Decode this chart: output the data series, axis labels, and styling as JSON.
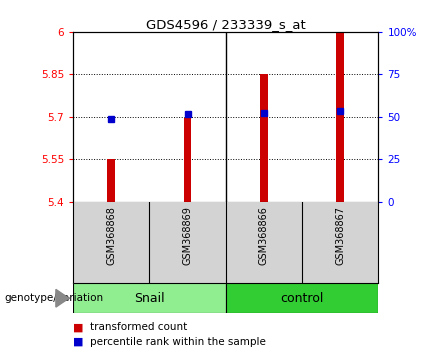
{
  "title": "GDS4596 / 233339_s_at",
  "samples": [
    "GSM368868",
    "GSM368869",
    "GSM368866",
    "GSM368867"
  ],
  "groups": [
    "Snail",
    "Snail",
    "control",
    "control"
  ],
  "group_labels": [
    "Snail",
    "control"
  ],
  "group_colors_snail": "#90EE90",
  "group_colors_ctrl": "#32CD32",
  "transformed_counts": [
    5.552,
    5.695,
    5.852,
    6.0
  ],
  "percentile_ranks": [
    49.0,
    51.5,
    52.5,
    53.5
  ],
  "ylim_left": [
    5.4,
    6.0
  ],
  "ylim_right": [
    0,
    100
  ],
  "yticks_left": [
    5.4,
    5.55,
    5.7,
    5.85,
    6.0
  ],
  "ytick_labels_left": [
    "5.4",
    "5.55",
    "5.7",
    "5.85",
    "6"
  ],
  "yticks_right": [
    0,
    25,
    50,
    75,
    100
  ],
  "ytick_labels_right": [
    "0",
    "25",
    "50",
    "75",
    "100%"
  ],
  "hlines": [
    5.55,
    5.7,
    5.85
  ],
  "bar_color": "#CC0000",
  "dot_color": "#0000CC",
  "bar_width": 0.1,
  "bar_bottom": 5.4,
  "background_color": "#ffffff",
  "plot_bg_color": "#ffffff",
  "sample_bg_color": "#D3D3D3",
  "legend_red_label": "transformed count",
  "legend_blue_label": "percentile rank within the sample",
  "genotype_label": "genotype/variation"
}
